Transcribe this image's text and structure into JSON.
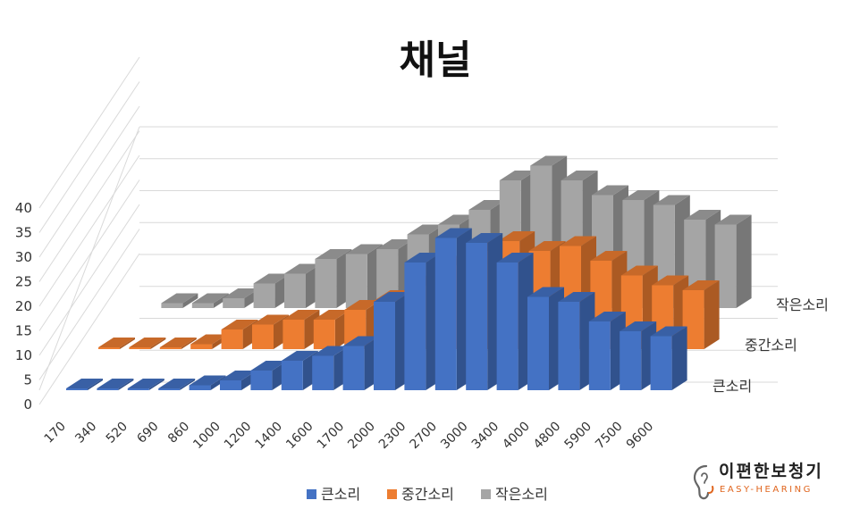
{
  "chart_data": {
    "type": "bar",
    "style": "3d-column",
    "title": "채널",
    "categories": [
      "170",
      "340",
      "520",
      "690",
      "860",
      "1000",
      "1200",
      "1400",
      "1600",
      "1700",
      "2000",
      "2300",
      "2700",
      "3000",
      "3400",
      "4000",
      "4800",
      "5900",
      "7500",
      "9600"
    ],
    "series": [
      {
        "name": "큰소리",
        "color": "#4472c4",
        "values": [
          0,
          0,
          0,
          0,
          1,
          2,
          4,
          6,
          7,
          9,
          18,
          26,
          31,
          30,
          26,
          19,
          18,
          14,
          12,
          11
        ]
      },
      {
        "name": "중간소리",
        "color": "#ed7d31",
        "values": [
          0,
          0,
          0,
          1,
          4,
          5,
          6,
          6,
          8,
          10,
          13,
          17,
          20,
          22,
          20,
          21,
          18,
          15,
          13,
          12
        ]
      },
      {
        "name": "작은소리",
        "color": "#a5a5a5",
        "values": [
          0,
          1,
          1,
          2,
          5,
          7,
          10,
          11,
          12,
          15,
          17,
          20,
          26,
          29,
          26,
          23,
          22,
          21,
          18,
          17
        ]
      }
    ],
    "depth_labels": [
      "큰소리",
      "중간소리",
      "작은소리"
    ],
    "ylim": [
      0,
      40
    ],
    "yticks": [
      0,
      5,
      10,
      15,
      20,
      25,
      30,
      35,
      40
    ],
    "grid": true,
    "legend": "bottom"
  },
  "logo": {
    "name": "이편한보청기",
    "subtitle": "EASY-HEARING",
    "icon": "ear-icon",
    "accent": "#e0651e"
  }
}
